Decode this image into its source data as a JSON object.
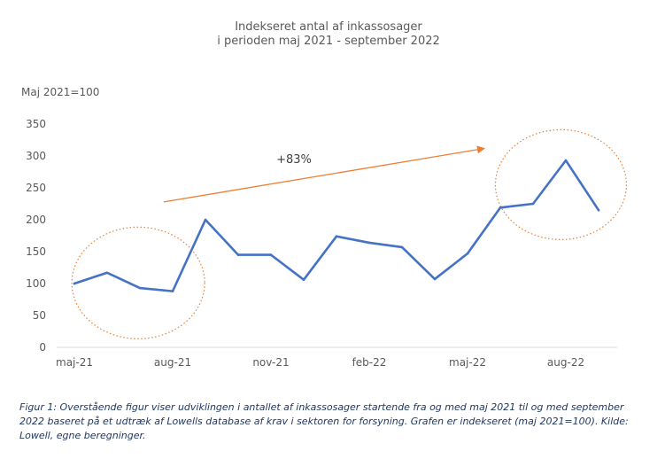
{
  "chart_data": {
    "type": "line",
    "title_line1": "Indekseret antal af inkassosager",
    "title_line2": "i perioden maj 2021 - september 2022",
    "ylabel": "Maj 2021=100",
    "xlabel": "",
    "ylim": [
      0,
      350
    ],
    "yticks": [
      "0",
      "50",
      "100",
      "150",
      "200",
      "250",
      "300",
      "350"
    ],
    "x": [
      "maj-21",
      "jun-21",
      "jul-21",
      "aug-21",
      "sep-21",
      "okt-21",
      "nov-21",
      "dec-21",
      "jan-22",
      "feb-22",
      "mar-22",
      "apr-22",
      "maj-22",
      "jun-22",
      "jul-22",
      "aug-22",
      "sep-22"
    ],
    "xtick_labels": [
      "maj-21",
      "aug-21",
      "nov-21",
      "feb-22",
      "maj-22",
      "aug-22"
    ],
    "values": [
      100,
      117,
      93,
      88,
      200,
      145,
      145,
      106,
      174,
      164,
      157,
      107,
      147,
      219,
      225,
      293,
      215
    ],
    "grid": false,
    "line_color": "#4472c4",
    "annotation": {
      "text": "+83%",
      "color": "#ed7d31",
      "arrow_from": {
        "x": 3,
        "y": 228
      },
      "arrow_to": {
        "x": 13,
        "y": 312
      }
    },
    "highlight_color": "#ed7d31"
  },
  "caption": "Figur 1: Overstående figur viser udviklingen i antallet af inkassosager startende fra og med maj 2021 til og med september 2022 baseret på et udtræk af Lowells database af krav i sektoren for forsyning. Grafen er indekseret (maj 2021=100). Kilde: Lowell, egne beregninger."
}
